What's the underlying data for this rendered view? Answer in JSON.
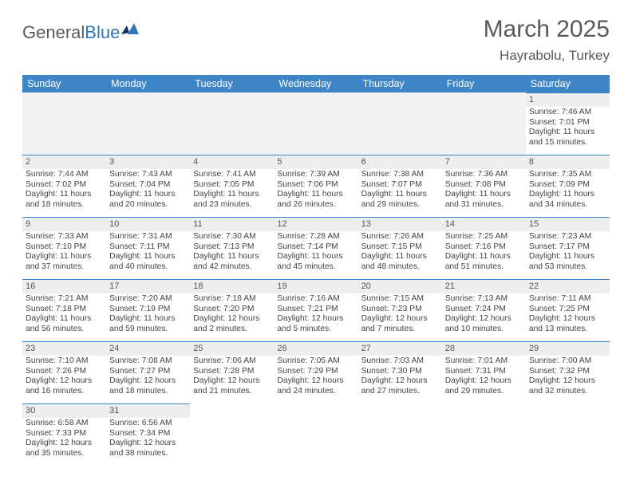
{
  "logo": {
    "general": "General",
    "blue": "Blue"
  },
  "title": "March 2025",
  "location": "Hayrabolu, Turkey",
  "day_headers": [
    "Sunday",
    "Monday",
    "Tuesday",
    "Wednesday",
    "Thursday",
    "Friday",
    "Saturday"
  ],
  "colors": {
    "header_bg": "#3d85c6",
    "header_fg": "#ffffff",
    "accent_border": "#3d85c6",
    "daynum_bg": "#eeeeee",
    "empty_bg": "#f2f2f2",
    "text": "#444444",
    "title": "#5a5a5a",
    "logo_blue": "#2f78b8"
  },
  "weeks": [
    [
      null,
      null,
      null,
      null,
      null,
      null,
      {
        "n": "1",
        "sunrise": "7:46 AM",
        "sunset": "7:01 PM",
        "daylight": "11 hours and 15 minutes."
      }
    ],
    [
      {
        "n": "2",
        "sunrise": "7:44 AM",
        "sunset": "7:02 PM",
        "daylight": "11 hours and 18 minutes."
      },
      {
        "n": "3",
        "sunrise": "7:43 AM",
        "sunset": "7:04 PM",
        "daylight": "11 hours and 20 minutes."
      },
      {
        "n": "4",
        "sunrise": "7:41 AM",
        "sunset": "7:05 PM",
        "daylight": "11 hours and 23 minutes."
      },
      {
        "n": "5",
        "sunrise": "7:39 AM",
        "sunset": "7:06 PM",
        "daylight": "11 hours and 26 minutes."
      },
      {
        "n": "6",
        "sunrise": "7:38 AM",
        "sunset": "7:07 PM",
        "daylight": "11 hours and 29 minutes."
      },
      {
        "n": "7",
        "sunrise": "7:36 AM",
        "sunset": "7:08 PM",
        "daylight": "11 hours and 31 minutes."
      },
      {
        "n": "8",
        "sunrise": "7:35 AM",
        "sunset": "7:09 PM",
        "daylight": "11 hours and 34 minutes."
      }
    ],
    [
      {
        "n": "9",
        "sunrise": "7:33 AM",
        "sunset": "7:10 PM",
        "daylight": "11 hours and 37 minutes."
      },
      {
        "n": "10",
        "sunrise": "7:31 AM",
        "sunset": "7:11 PM",
        "daylight": "11 hours and 40 minutes."
      },
      {
        "n": "11",
        "sunrise": "7:30 AM",
        "sunset": "7:13 PM",
        "daylight": "11 hours and 42 minutes."
      },
      {
        "n": "12",
        "sunrise": "7:28 AM",
        "sunset": "7:14 PM",
        "daylight": "11 hours and 45 minutes."
      },
      {
        "n": "13",
        "sunrise": "7:26 AM",
        "sunset": "7:15 PM",
        "daylight": "11 hours and 48 minutes."
      },
      {
        "n": "14",
        "sunrise": "7:25 AM",
        "sunset": "7:16 PM",
        "daylight": "11 hours and 51 minutes."
      },
      {
        "n": "15",
        "sunrise": "7:23 AM",
        "sunset": "7:17 PM",
        "daylight": "11 hours and 53 minutes."
      }
    ],
    [
      {
        "n": "16",
        "sunrise": "7:21 AM",
        "sunset": "7:18 PM",
        "daylight": "11 hours and 56 minutes."
      },
      {
        "n": "17",
        "sunrise": "7:20 AM",
        "sunset": "7:19 PM",
        "daylight": "11 hours and 59 minutes."
      },
      {
        "n": "18",
        "sunrise": "7:18 AM",
        "sunset": "7:20 PM",
        "daylight": "12 hours and 2 minutes."
      },
      {
        "n": "19",
        "sunrise": "7:16 AM",
        "sunset": "7:21 PM",
        "daylight": "12 hours and 5 minutes."
      },
      {
        "n": "20",
        "sunrise": "7:15 AM",
        "sunset": "7:23 PM",
        "daylight": "12 hours and 7 minutes."
      },
      {
        "n": "21",
        "sunrise": "7:13 AM",
        "sunset": "7:24 PM",
        "daylight": "12 hours and 10 minutes."
      },
      {
        "n": "22",
        "sunrise": "7:11 AM",
        "sunset": "7:25 PM",
        "daylight": "12 hours and 13 minutes."
      }
    ],
    [
      {
        "n": "23",
        "sunrise": "7:10 AM",
        "sunset": "7:26 PM",
        "daylight": "12 hours and 16 minutes."
      },
      {
        "n": "24",
        "sunrise": "7:08 AM",
        "sunset": "7:27 PM",
        "daylight": "12 hours and 18 minutes."
      },
      {
        "n": "25",
        "sunrise": "7:06 AM",
        "sunset": "7:28 PM",
        "daylight": "12 hours and 21 minutes."
      },
      {
        "n": "26",
        "sunrise": "7:05 AM",
        "sunset": "7:29 PM",
        "daylight": "12 hours and 24 minutes."
      },
      {
        "n": "27",
        "sunrise": "7:03 AM",
        "sunset": "7:30 PM",
        "daylight": "12 hours and 27 minutes."
      },
      {
        "n": "28",
        "sunrise": "7:01 AM",
        "sunset": "7:31 PM",
        "daylight": "12 hours and 29 minutes."
      },
      {
        "n": "29",
        "sunrise": "7:00 AM",
        "sunset": "7:32 PM",
        "daylight": "12 hours and 32 minutes."
      }
    ],
    [
      {
        "n": "30",
        "sunrise": "6:58 AM",
        "sunset": "7:33 PM",
        "daylight": "12 hours and 35 minutes."
      },
      {
        "n": "31",
        "sunrise": "6:56 AM",
        "sunset": "7:34 PM",
        "daylight": "12 hours and 38 minutes."
      },
      null,
      null,
      null,
      null,
      null
    ]
  ]
}
